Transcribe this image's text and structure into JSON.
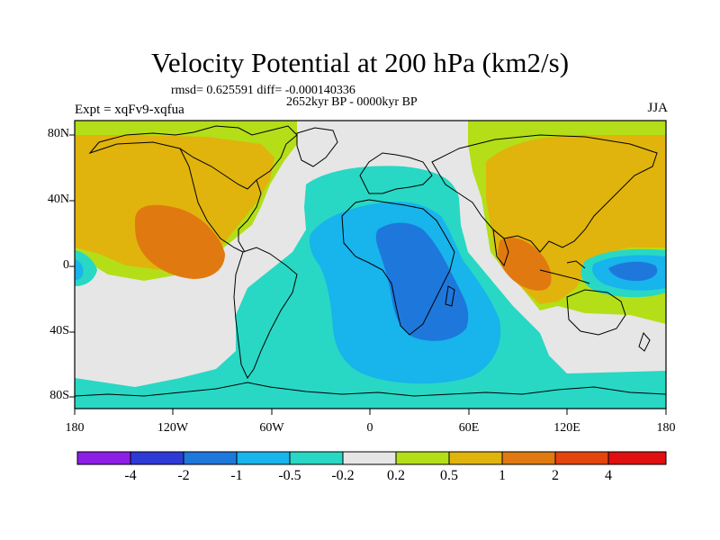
{
  "header": {
    "title": "Velocity Potential at 200 hPa (km2/s)",
    "stats": "rmsd= 0.625591 diff= -0.000140336",
    "period": "2652kyr BP - 0000kyr BP",
    "experiment": "Expt = xqFv9-xqfua",
    "season": "JJA"
  },
  "axes": {
    "lat_ticks": [
      "80N",
      "40N",
      "0",
      "40S",
      "80S"
    ],
    "lon_ticks": [
      "180",
      "120W",
      "60W",
      "0",
      "60E",
      "120E",
      "180"
    ]
  },
  "colorbar": {
    "labels": [
      "-4",
      "-2",
      "-1",
      "-0.5",
      "-0.2",
      "0.2",
      "0.5",
      "1",
      "2",
      "4"
    ],
    "colors": [
      "#8c1ee6",
      "#2e3ad6",
      "#1e78dc",
      "#18b4ec",
      "#28d8c4",
      "#e6e6e6",
      "#b4de18",
      "#e0b40c",
      "#e07a10",
      "#e4440e",
      "#e01010"
    ]
  },
  "palette": {
    "ocean_neutral": "#e6e6e6",
    "neg_weak": "#28d8c4",
    "neg_mid": "#18b4ec",
    "neg_strong": "#1e78dc",
    "pos_weak": "#b4de18",
    "pos_mid": "#e0b40c",
    "pos_strong": "#e07a10"
  }
}
